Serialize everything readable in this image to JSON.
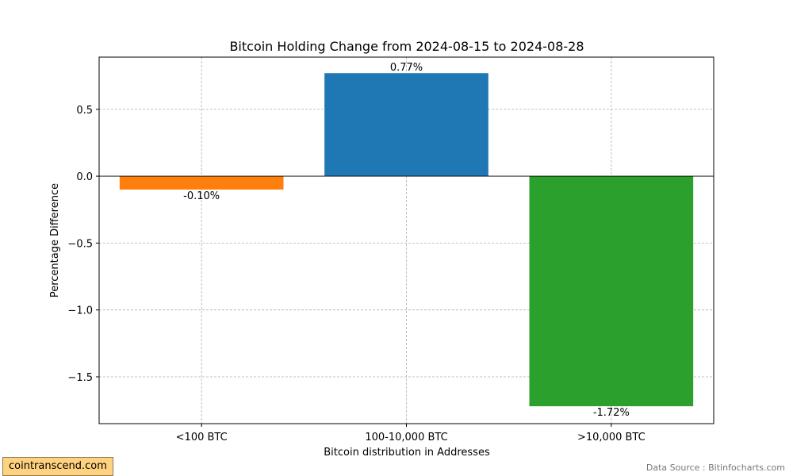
{
  "chart_data": {
    "type": "bar",
    "title": "Bitcoin Holding Change from 2024-08-15 to 2024-08-28",
    "xlabel": "Bitcoin distribution in Addresses",
    "ylabel": "Percentage Difference",
    "categories": [
      "<100 BTC",
      "100-10,000 BTC",
      ">10,000 BTC"
    ],
    "values": [
      -0.1,
      0.77,
      -1.72
    ],
    "value_labels": [
      "-0.10%",
      "0.77%",
      "-1.72%"
    ],
    "colors": [
      "#ff7f0e",
      "#1f77b4",
      "#2ca02c"
    ],
    "ylim": [
      -1.85,
      0.89
    ],
    "yticks": [
      0.5,
      0.0,
      -0.5,
      -1.0,
      -1.5
    ],
    "ytick_labels": [
      "0.5",
      "0.0",
      "−0.5",
      "−1.0",
      "−1.5"
    ],
    "grid": true,
    "zero_line": true
  },
  "footer": {
    "watermark": "cointranscend.com",
    "source": "Data Source : Bitinfocharts.com"
  }
}
